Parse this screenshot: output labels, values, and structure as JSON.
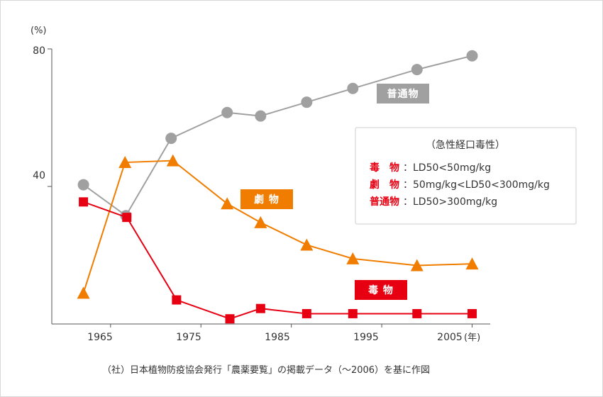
{
  "chart_data": {
    "type": "line",
    "y_unit": "(%)",
    "x_unit": "(年)",
    "x_ticks": [
      "1965",
      "1975",
      "1985",
      "1995",
      "2005"
    ],
    "y_ticks": [
      "40",
      "80"
    ],
    "xlim": [
      1958.5,
      2007
    ],
    "ylim": [
      0,
      80
    ],
    "series": [
      {
        "name": "普通物",
        "color": "#a0a0a0",
        "marker": "circle",
        "points": [
          [
            1962,
            40.5
          ],
          [
            1966.7,
            31.5
          ],
          [
            1971.7,
            54
          ],
          [
            1977.9,
            61.5
          ],
          [
            1981.6,
            60.5
          ],
          [
            1986.7,
            64.5
          ],
          [
            1991.8,
            68.5
          ],
          [
            1998.9,
            74
          ],
          [
            2005,
            78
          ]
        ]
      },
      {
        "name": "劇 物",
        "color": "#f07d00",
        "marker": "triangle",
        "points": [
          [
            1962,
            9
          ],
          [
            1966.6,
            47
          ],
          [
            1971.9,
            47.5
          ],
          [
            1977.9,
            35
          ],
          [
            1981.6,
            29.5
          ],
          [
            1986.7,
            23
          ],
          [
            1991.8,
            19
          ],
          [
            1998.9,
            17
          ],
          [
            2005,
            17.5
          ]
        ]
      },
      {
        "name": "毒 物",
        "color": "#e60012",
        "marker": "square",
        "points": [
          [
            1962,
            35.5
          ],
          [
            1966.8,
            31
          ],
          [
            1972.3,
            7
          ],
          [
            1978.2,
            1.5
          ],
          [
            1981.6,
            4.5
          ],
          [
            1986.7,
            3
          ],
          [
            1991.8,
            3
          ],
          [
            1998.9,
            3
          ],
          [
            2005,
            3
          ]
        ]
      }
    ],
    "legend_box": {
      "title": "（急性経口毒性）",
      "rows": [
        {
          "key": "毒　物",
          "value": "：LD50<50mg/kg"
        },
        {
          "key": "劇　物",
          "value": "：50mg/kg<LD50<300mg/kg"
        },
        {
          "key": "普通物",
          "value": "：LD50>300mg/kg"
        }
      ]
    }
  },
  "caption": "（社）日本植物防疫協会発行「農薬要覧」の掲載データ（〜2006）を基に作図"
}
